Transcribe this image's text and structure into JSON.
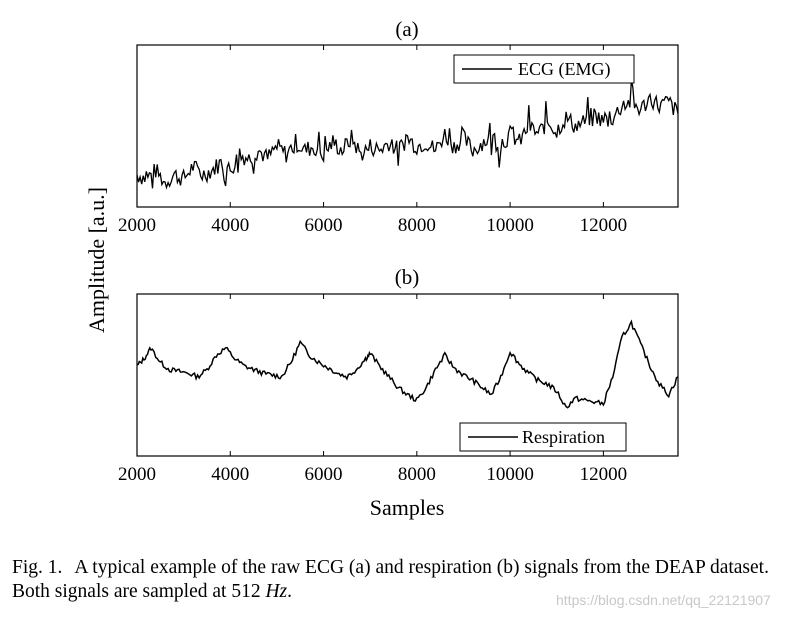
{
  "chart_data": [
    {
      "type": "line",
      "title": "(a)",
      "xlabel": "",
      "ylabel": "",
      "xlim": [
        2000,
        13600
      ],
      "ylim": [
        -1.5,
        2.5
      ],
      "xticks": [
        2000,
        4000,
        6000,
        8000,
        10000,
        12000
      ],
      "ytick_labels": false,
      "legend": "top-right",
      "series": [
        {
          "name": "ECG (EMG)",
          "color": "#000000",
          "x": [
            2000,
            2200,
            2400,
            2600,
            2800,
            3000,
            3200,
            3400,
            3600,
            3800,
            4000,
            4200,
            4400,
            4600,
            4800,
            5000,
            5200,
            5400,
            5600,
            5800,
            6000,
            6200,
            6400,
            6600,
            6800,
            7000,
            7200,
            7400,
            7600,
            7800,
            8000,
            8200,
            8400,
            8600,
            8800,
            9000,
            9200,
            9400,
            9600,
            9800,
            10000,
            10200,
            10400,
            10600,
            10800,
            11000,
            11200,
            11400,
            11600,
            11800,
            12000,
            12200,
            12400,
            12600,
            12800,
            13000,
            13200,
            13400,
            13600
          ],
          "y": [
            -0.7,
            -0.8,
            -0.6,
            -0.9,
            -0.7,
            -0.8,
            -0.5,
            -0.7,
            -0.6,
            -0.4,
            -0.6,
            -0.2,
            -0.3,
            -0.1,
            -0.3,
            0.0,
            -0.2,
            0.1,
            -0.1,
            0.0,
            -0.2,
            0.1,
            -0.1,
            0.2,
            -0.2,
            0.0,
            -0.1,
            0.1,
            -0.1,
            0.2,
            0.0,
            0.1,
            -0.1,
            0.3,
            0.0,
            0.2,
            -0.1,
            0.1,
            0.2,
            0.0,
            0.3,
            0.1,
            0.5,
            0.3,
            0.6,
            0.4,
            0.7,
            0.5,
            0.6,
            0.8,
            0.6,
            0.7,
            1.0,
            1.1,
            0.9,
            1.2,
            1.0,
            1.1,
            0.8
          ]
        }
      ]
    },
    {
      "type": "line",
      "title": "(b)",
      "xlabel": "Samples",
      "ylabel": "",
      "xlim": [
        2000,
        13600
      ],
      "ylim": [
        -2.0,
        2.5
      ],
      "xticks": [
        2000,
        4000,
        6000,
        8000,
        10000,
        12000
      ],
      "ytick_labels": false,
      "legend": "bottom-right",
      "series": [
        {
          "name": "Respiration",
          "color": "#000000",
          "x": [
            2000,
            2150,
            2300,
            2500,
            2700,
            2900,
            3100,
            3300,
            3500,
            3700,
            3900,
            4100,
            4300,
            4500,
            4700,
            4900,
            5100,
            5300,
            5500,
            5700,
            5900,
            6100,
            6300,
            6500,
            6700,
            6900,
            7000,
            7200,
            7400,
            7600,
            7800,
            8000,
            8200,
            8400,
            8600,
            8800,
            9000,
            9200,
            9400,
            9600,
            9800,
            10000,
            10200,
            10400,
            10600,
            10800,
            11000,
            11200,
            11400,
            11600,
            11800,
            12000,
            12200,
            12400,
            12600,
            12800,
            13000,
            13200,
            13400,
            13600
          ],
          "y": [
            0.5,
            0.7,
            1.0,
            0.6,
            0.4,
            0.35,
            0.3,
            0.2,
            0.4,
            0.8,
            1.0,
            0.7,
            0.5,
            0.4,
            0.3,
            0.25,
            0.2,
            0.6,
            1.15,
            0.8,
            0.6,
            0.45,
            0.3,
            0.2,
            0.4,
            0.7,
            0.85,
            0.5,
            0.2,
            -0.1,
            -0.3,
            -0.45,
            -0.1,
            0.4,
            0.8,
            0.45,
            0.25,
            0.1,
            -0.1,
            -0.3,
            0.2,
            0.9,
            0.55,
            0.3,
            0.1,
            0.0,
            -0.2,
            -0.65,
            -0.4,
            -0.45,
            -0.5,
            -0.55,
            0.2,
            1.3,
            1.7,
            1.1,
            0.5,
            0.0,
            -0.3,
            0.2
          ]
        }
      ]
    }
  ],
  "axis_label_shared": "Amplitude [a.u.]",
  "caption": {
    "label": "Fig. 1.",
    "text_before_math": "A typical example of the raw ECG (a) and respiration (b) signals from the DEAP dataset. Both signals are sampled at ",
    "math_value": "512",
    "math_unit": "Hz",
    "text_after_math": "."
  },
  "watermark": "https://blog.csdn.net/qq_22121907"
}
